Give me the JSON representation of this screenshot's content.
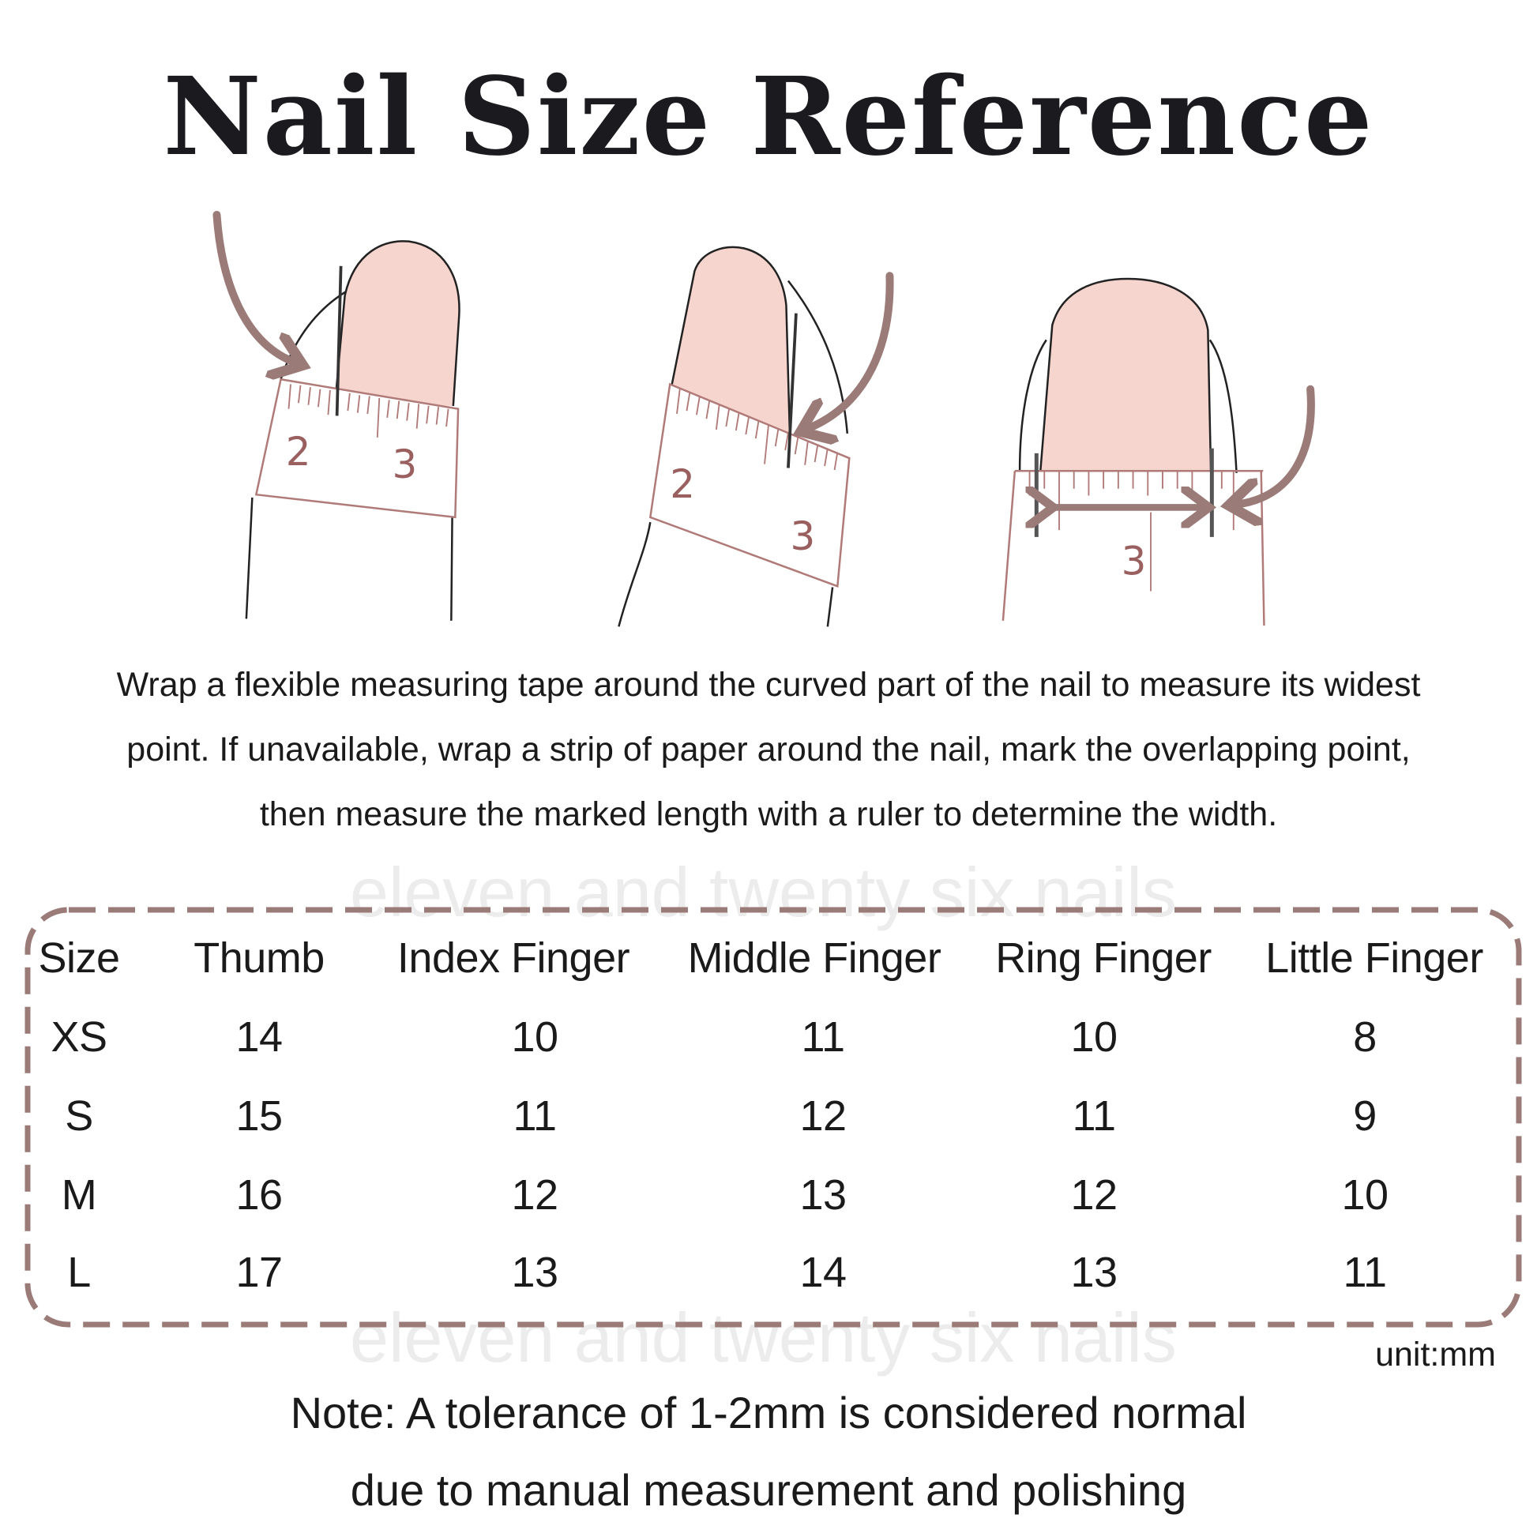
{
  "title": "Nail Size Reference",
  "illustration": {
    "tape_numbers": [
      "2",
      "3",
      "2",
      "3",
      "3"
    ],
    "accent_color": "#9a7b78",
    "nail_color": "#f7d5cf"
  },
  "instructions": [
    "Wrap a flexible measuring tape around the curved part of the nail to measure its widest",
    "point. If unavailable, wrap a strip of paper around the nail, mark the overlapping point,",
    "then measure the marked length with a ruler to determine the width."
  ],
  "watermark": "eleven and twenty six nails",
  "table": {
    "headers": [
      "Size",
      "Thumb",
      "Index Finger",
      "Middle Finger",
      "Ring Finger",
      "Little Finger"
    ],
    "rows": [
      [
        "XS",
        "14",
        "10",
        "11",
        "10",
        "8"
      ],
      [
        "S",
        "15",
        "11",
        "12",
        "11",
        "9"
      ],
      [
        "M",
        "16",
        "12",
        "13",
        "12",
        "10"
      ],
      [
        "L",
        "17",
        "13",
        "14",
        "13",
        "11"
      ]
    ],
    "unit": "unit:mm"
  },
  "note": [
    "Note: A tolerance of 1-2mm is considered normal",
    "due to manual measurement and polishing"
  ]
}
